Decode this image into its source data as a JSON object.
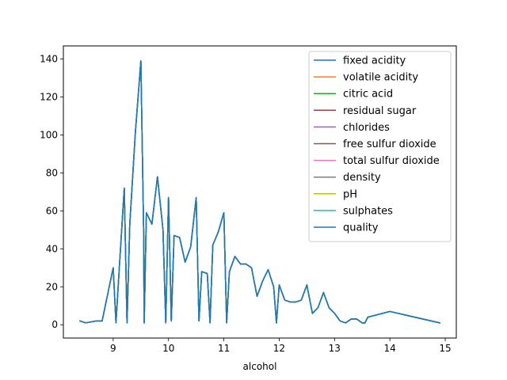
{
  "chart_data": {
    "type": "line",
    "title": "",
    "xlabel": "alcohol",
    "ylabel": "",
    "xlim": [
      8.1,
      15.2
    ],
    "ylim": [
      -7,
      146.9
    ],
    "xticks": [
      9,
      10,
      11,
      12,
      13,
      14,
      15
    ],
    "yticks": [
      0,
      20,
      40,
      60,
      80,
      100,
      120,
      140
    ],
    "xtick_labels": [
      "9",
      "10",
      "11",
      "12",
      "13",
      "14",
      "15"
    ],
    "ytick_labels": [
      "0",
      "20",
      "40",
      "60",
      "80",
      "100",
      "120",
      "140"
    ],
    "grid": false,
    "legend_position": "upper right",
    "x": [
      8.4,
      8.5,
      8.7,
      8.8,
      9.0,
      9.05,
      9.1,
      9.2,
      9.25,
      9.3,
      9.4,
      9.5,
      9.55,
      9.56,
      9.6,
      9.7,
      9.8,
      9.9,
      9.95,
      10.0,
      10.05,
      10.1,
      10.2,
      10.3,
      10.4,
      10.5,
      10.55,
      10.6,
      10.7,
      10.75,
      10.8,
      10.9,
      11.0,
      11.05,
      11.1,
      11.2,
      11.3,
      11.4,
      11.5,
      11.6,
      11.7,
      11.8,
      11.9,
      11.95,
      12.0,
      12.1,
      12.2,
      12.3,
      12.4,
      12.5,
      12.6,
      12.7,
      12.8,
      12.9,
      13.0,
      13.1,
      13.2,
      13.3,
      13.4,
      13.5,
      13.55,
      13.6,
      14.0,
      14.9
    ],
    "series": [
      {
        "name": "fixed acidity",
        "color": "#1f77b4",
        "values": [
          2,
          1,
          2,
          2,
          30,
          1,
          25,
          72,
          1,
          53,
          101,
          139,
          50,
          1,
          59,
          53,
          78,
          50,
          1,
          67,
          2,
          47,
          46,
          33,
          41,
          67,
          2,
          28,
          27,
          1,
          42,
          49,
          59,
          1,
          28,
          36,
          32,
          32,
          30,
          15,
          23,
          29,
          20,
          1,
          21,
          13,
          12,
          12,
          13,
          21,
          6,
          9,
          17,
          9,
          6,
          2,
          1,
          3,
          3,
          1,
          1,
          4,
          7,
          1
        ]
      },
      {
        "name": "volatile acidity",
        "color": "#ff7f0e",
        "values": [
          2,
          1,
          2,
          2,
          30,
          1,
          25,
          72,
          1,
          53,
          101,
          139,
          50,
          1,
          59,
          53,
          78,
          50,
          1,
          67,
          2,
          47,
          46,
          33,
          41,
          67,
          2,
          28,
          27,
          1,
          42,
          49,
          59,
          1,
          28,
          36,
          32,
          32,
          30,
          15,
          23,
          29,
          20,
          1,
          21,
          13,
          12,
          12,
          13,
          21,
          6,
          9,
          17,
          9,
          6,
          2,
          1,
          3,
          3,
          1,
          1,
          4,
          7,
          1
        ]
      },
      {
        "name": "citric acid",
        "color": "#2ca02c",
        "values": [
          2,
          1,
          2,
          2,
          30,
          1,
          25,
          72,
          1,
          53,
          101,
          139,
          50,
          1,
          59,
          53,
          78,
          50,
          1,
          67,
          2,
          47,
          46,
          33,
          41,
          67,
          2,
          28,
          27,
          1,
          42,
          49,
          59,
          1,
          28,
          36,
          32,
          32,
          30,
          15,
          23,
          29,
          20,
          1,
          21,
          13,
          12,
          12,
          13,
          21,
          6,
          9,
          17,
          9,
          6,
          2,
          1,
          3,
          3,
          1,
          1,
          4,
          7,
          1
        ]
      },
      {
        "name": "residual sugar",
        "color": "#d62728",
        "values": [
          2,
          1,
          2,
          2,
          30,
          1,
          25,
          72,
          1,
          53,
          101,
          139,
          50,
          1,
          59,
          53,
          78,
          50,
          1,
          67,
          2,
          47,
          46,
          33,
          41,
          67,
          2,
          28,
          27,
          1,
          42,
          49,
          59,
          1,
          28,
          36,
          32,
          32,
          30,
          15,
          23,
          29,
          20,
          1,
          21,
          13,
          12,
          12,
          13,
          21,
          6,
          9,
          17,
          9,
          6,
          2,
          1,
          3,
          3,
          1,
          1,
          4,
          7,
          1
        ]
      },
      {
        "name": "chlorides",
        "color": "#9467bd",
        "values": [
          2,
          1,
          2,
          2,
          30,
          1,
          25,
          72,
          1,
          53,
          101,
          139,
          50,
          1,
          59,
          53,
          78,
          50,
          1,
          67,
          2,
          47,
          46,
          33,
          41,
          67,
          2,
          28,
          27,
          1,
          42,
          49,
          59,
          1,
          28,
          36,
          32,
          32,
          30,
          15,
          23,
          29,
          20,
          1,
          21,
          13,
          12,
          12,
          13,
          21,
          6,
          9,
          17,
          9,
          6,
          2,
          1,
          3,
          3,
          1,
          1,
          4,
          7,
          1
        ]
      },
      {
        "name": "free sulfur dioxide",
        "color": "#8c564b",
        "values": [
          2,
          1,
          2,
          2,
          30,
          1,
          25,
          72,
          1,
          53,
          101,
          139,
          50,
          1,
          59,
          53,
          78,
          50,
          1,
          67,
          2,
          47,
          46,
          33,
          41,
          67,
          2,
          28,
          27,
          1,
          42,
          49,
          59,
          1,
          28,
          36,
          32,
          32,
          30,
          15,
          23,
          29,
          20,
          1,
          21,
          13,
          12,
          12,
          13,
          21,
          6,
          9,
          17,
          9,
          6,
          2,
          1,
          3,
          3,
          1,
          1,
          4,
          7,
          1
        ]
      },
      {
        "name": "total sulfur dioxide",
        "color": "#e377c2",
        "values": [
          2,
          1,
          2,
          2,
          30,
          1,
          25,
          72,
          1,
          53,
          101,
          139,
          50,
          1,
          59,
          53,
          78,
          50,
          1,
          67,
          2,
          47,
          46,
          33,
          41,
          67,
          2,
          28,
          27,
          1,
          42,
          49,
          59,
          1,
          28,
          36,
          32,
          32,
          30,
          15,
          23,
          29,
          20,
          1,
          21,
          13,
          12,
          12,
          13,
          21,
          6,
          9,
          17,
          9,
          6,
          2,
          1,
          3,
          3,
          1,
          1,
          4,
          7,
          1
        ]
      },
      {
        "name": "density",
        "color": "#7f7f7f",
        "values": [
          2,
          1,
          2,
          2,
          30,
          1,
          25,
          72,
          1,
          53,
          101,
          139,
          50,
          1,
          59,
          53,
          78,
          50,
          1,
          67,
          2,
          47,
          46,
          33,
          41,
          67,
          2,
          28,
          27,
          1,
          42,
          49,
          59,
          1,
          28,
          36,
          32,
          32,
          30,
          15,
          23,
          29,
          20,
          1,
          21,
          13,
          12,
          12,
          13,
          21,
          6,
          9,
          17,
          9,
          6,
          2,
          1,
          3,
          3,
          1,
          1,
          4,
          7,
          1
        ]
      },
      {
        "name": "pH",
        "color": "#bcbd22",
        "values": [
          2,
          1,
          2,
          2,
          30,
          1,
          25,
          72,
          1,
          53,
          101,
          139,
          50,
          1,
          59,
          53,
          78,
          50,
          1,
          67,
          2,
          47,
          46,
          33,
          41,
          67,
          2,
          28,
          27,
          1,
          42,
          49,
          59,
          1,
          28,
          36,
          32,
          32,
          30,
          15,
          23,
          29,
          20,
          1,
          21,
          13,
          12,
          12,
          13,
          21,
          6,
          9,
          17,
          9,
          6,
          2,
          1,
          3,
          3,
          1,
          1,
          4,
          7,
          1
        ]
      },
      {
        "name": "sulphates",
        "color": "#17becf",
        "values": [
          2,
          1,
          2,
          2,
          30,
          1,
          25,
          72,
          1,
          53,
          101,
          139,
          50,
          1,
          59,
          53,
          78,
          50,
          1,
          67,
          2,
          47,
          46,
          33,
          41,
          67,
          2,
          28,
          27,
          1,
          42,
          49,
          59,
          1,
          28,
          36,
          32,
          32,
          30,
          15,
          23,
          29,
          20,
          1,
          21,
          13,
          12,
          12,
          13,
          21,
          6,
          9,
          17,
          9,
          6,
          2,
          1,
          3,
          3,
          1,
          1,
          4,
          7,
          1
        ]
      },
      {
        "name": "quality",
        "color": "#1f77b4",
        "values": [
          2,
          1,
          2,
          2,
          30,
          1,
          25,
          72,
          1,
          53,
          101,
          139,
          50,
          1,
          59,
          53,
          78,
          50,
          1,
          67,
          2,
          47,
          46,
          33,
          41,
          67,
          2,
          28,
          27,
          1,
          42,
          49,
          59,
          1,
          28,
          36,
          32,
          32,
          30,
          15,
          23,
          29,
          20,
          1,
          21,
          13,
          12,
          12,
          13,
          21,
          6,
          9,
          17,
          9,
          6,
          2,
          1,
          3,
          3,
          1,
          1,
          4,
          7,
          1
        ]
      }
    ]
  }
}
